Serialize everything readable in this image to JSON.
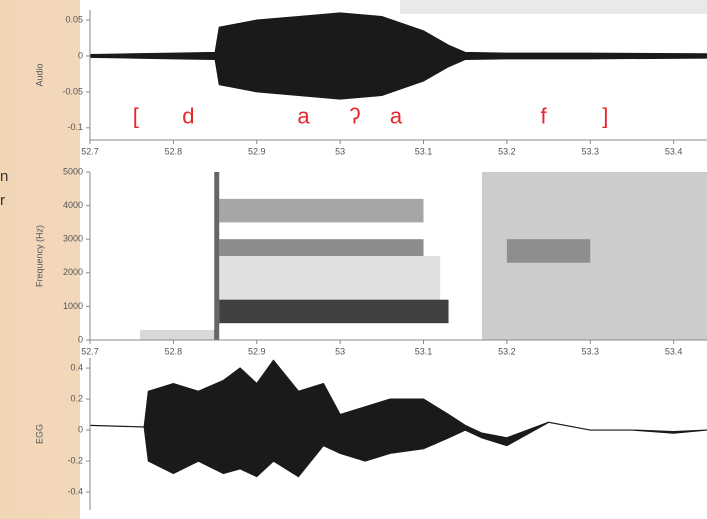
{
  "slide_fragments": [
    "n",
    "r"
  ],
  "chart_data": [
    {
      "type": "waveform",
      "ylabel": "Audio",
      "x": [
        52.7,
        52.75,
        52.8,
        52.85,
        52.855,
        52.9,
        52.95,
        53.0,
        53.05,
        53.1,
        53.13,
        53.15,
        53.2,
        53.3,
        53.44
      ],
      "values": [
        0.002,
        0.003,
        0.004,
        0.005,
        0.04,
        0.05,
        0.055,
        0.06,
        0.055,
        0.035,
        0.015,
        0.005,
        0.004,
        0.004,
        0.003
      ],
      "color": "#1a1a1a",
      "xlim": [
        52.7,
        53.44
      ],
      "xticks": [
        52.7,
        52.8,
        52.9,
        53,
        53.1,
        53.2,
        53.3,
        53.4
      ],
      "ylim": [
        -0.117,
        0.064
      ],
      "yticks": [
        0.05,
        0,
        -0.05,
        -0.1
      ],
      "annotation_color": "#e8262a",
      "annotations": [
        {
          "x": 52.755,
          "y": -0.086,
          "text": "["
        },
        {
          "x": 52.818,
          "y": -0.086,
          "text": "d"
        },
        {
          "x": 52.956,
          "y": -0.086,
          "text": "a"
        },
        {
          "x": 53.018,
          "y": -0.086,
          "text": "ʔ"
        },
        {
          "x": 53.067,
          "y": -0.086,
          "text": "a"
        },
        {
          "x": 53.244,
          "y": -0.086,
          "text": "f"
        },
        {
          "x": 53.318,
          "y": -0.086,
          "text": "]"
        }
      ]
    },
    {
      "type": "spectrogram",
      "ylabel": "Frequency (Hz)",
      "regions": [
        {
          "x": [
            52.76,
            52.85
          ],
          "y": [
            0,
            300
          ],
          "level": 0.15
        },
        {
          "x": [
            52.855,
            53.12
          ],
          "y": [
            1200,
            2500
          ],
          "level": 0.12
        },
        {
          "x": [
            52.855,
            53.13
          ],
          "y": [
            500,
            1200
          ],
          "level": 0.75
        },
        {
          "x": [
            52.855,
            53.1
          ],
          "y": [
            2500,
            3000
          ],
          "level": 0.45
        },
        {
          "x": [
            52.855,
            53.1
          ],
          "y": [
            3500,
            4200
          ],
          "level": 0.35
        },
        {
          "x": [
            52.849,
            52.855
          ],
          "y": [
            0,
            5000
          ],
          "level": 0.6
        },
        {
          "x": [
            53.17,
            53.44
          ],
          "y": [
            0,
            5000
          ],
          "level": 0.2
        },
        {
          "x": [
            53.2,
            53.3
          ],
          "y": [
            2300,
            3000
          ],
          "level": 0.3
        }
      ],
      "xlim": [
        52.7,
        53.44
      ],
      "xticks": [
        52.7,
        52.8,
        52.9,
        53,
        53.1,
        53.2,
        53.3,
        53.4
      ],
      "ylim": [
        0,
        5000
      ],
      "yticks": [
        0,
        1000,
        2000,
        3000,
        4000,
        5000
      ]
    },
    {
      "type": "envelope",
      "ylabel": "EGG",
      "x": [
        52.7,
        52.765,
        52.77,
        52.8,
        52.83,
        52.86,
        52.88,
        52.9,
        52.92,
        52.95,
        52.98,
        53.0,
        53.03,
        53.06,
        53.1,
        53.13,
        53.15,
        53.17,
        53.2,
        53.25,
        53.3,
        53.35,
        53.4,
        53.44
      ],
      "upper": [
        0.03,
        0.02,
        0.25,
        0.3,
        0.25,
        0.32,
        0.4,
        0.3,
        0.45,
        0.25,
        0.3,
        0.1,
        0.15,
        0.2,
        0.2,
        0.1,
        0.03,
        -0.02,
        -0.05,
        0.05,
        0.0,
        0.0,
        -0.01,
        0.0
      ],
      "lower": [
        0.03,
        0.02,
        -0.2,
        -0.28,
        -0.2,
        -0.28,
        -0.25,
        -0.3,
        -0.2,
        -0.3,
        -0.1,
        -0.15,
        -0.2,
        -0.15,
        -0.12,
        -0.05,
        0.0,
        -0.05,
        -0.1,
        0.05,
        0.0,
        0.0,
        -0.02,
        0.0
      ],
      "color": "#1a1a1a",
      "xlim": [
        52.7,
        53.44
      ],
      "ylim": [
        -0.516,
        0.465
      ],
      "yticks": [
        0.4,
        0.2,
        0,
        -0.2,
        -0.4
      ]
    }
  ]
}
